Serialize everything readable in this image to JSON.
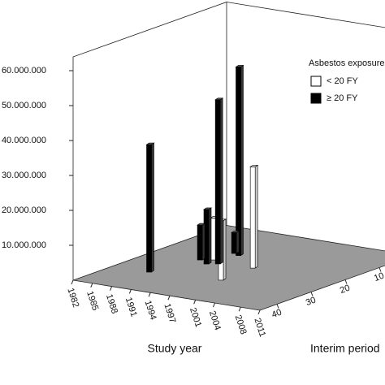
{
  "chart_data": {
    "type": "bar3d",
    "xlabel": "Study year",
    "zlabel": "Interim period",
    "legend_title": "Asbestos exposure",
    "xlim": [
      1982,
      2011
    ],
    "xticks": [
      1982,
      1985,
      1988,
      1991,
      1994,
      1997,
      2001,
      2004,
      2008,
      2011
    ],
    "zlim": [
      45,
      0
    ],
    "zticks": [
      40,
      30,
      20,
      10
    ],
    "ylim": [
      0,
      60000000
    ],
    "yticks": [
      {
        "value": 10000000,
        "label": "10.000.000"
      },
      {
        "value": 20000000,
        "label": "20.000.000"
      },
      {
        "value": 30000000,
        "label": "30.000.000"
      },
      {
        "value": 40000000,
        "label": "40.000.000"
      },
      {
        "value": 50000000,
        "label": "50.000.000"
      },
      {
        "value": 60000000,
        "label": "60.000.000"
      }
    ],
    "floor_color": "#9a9a9a",
    "series": [
      {
        "name": "< 20 FY",
        "color": "#ffffff",
        "x": [
          1997.6,
          1997.8,
          1990.9
        ],
        "z": [
          21.8,
          31.5,
          20.8
        ],
        "values": [
          29000000,
          17000000,
          12000000
        ]
      },
      {
        "name": "≥ 20 FY",
        "color": "#000000",
        "x": [
          1987.7,
          1992.6,
          1992.3,
          1991.4,
          1989.5,
          1991.2
        ],
        "z": [
          33.5,
          22.6,
          16,
          23.7,
          22,
          15.2
        ],
        "values": [
          36500000,
          47000000,
          54000000,
          15600000,
          10000000,
          6000000
        ]
      }
    ]
  }
}
